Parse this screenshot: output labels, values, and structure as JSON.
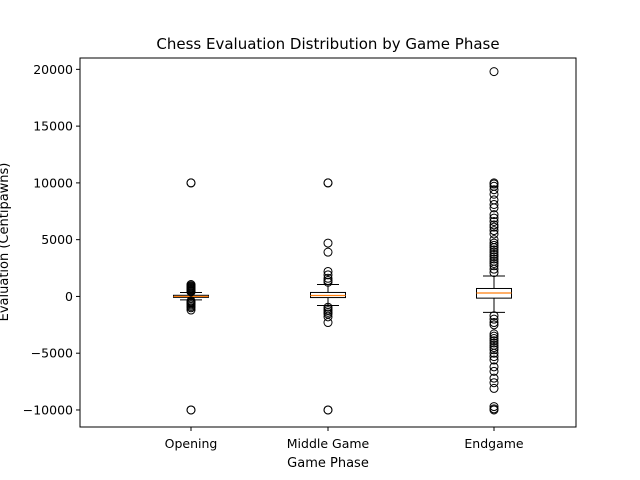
{
  "chart_data": {
    "type": "box",
    "title": "Chess Evaluation Distribution by Game Phase",
    "xlabel": "Game Phase",
    "ylabel": "Evaluation (Centipawns)",
    "ylim": [
      -11500,
      21000
    ],
    "yticks": [
      -10000,
      -5000,
      0,
      5000,
      10000,
      15000,
      20000
    ],
    "yticks_labels": [
      "−10000",
      "−5000",
      "0",
      "5000",
      "10000",
      "15000",
      "20000"
    ],
    "grid": false,
    "categories": [
      "Opening",
      "Middle Game",
      "Endgame"
    ],
    "colors": {
      "box": "#000000",
      "median": "#ff7f0e",
      "flier": "#000000"
    },
    "boxes": [
      {
        "label": "Opening",
        "whisker_low": -300,
        "q1": -80,
        "median": 0,
        "q3": 100,
        "whisker_high": 350,
        "fliers": [
          10000,
          10000,
          1050,
          950,
          880,
          800,
          720,
          650,
          580,
          500,
          450,
          400,
          -400,
          -480,
          -560,
          -650,
          -760,
          -880,
          -1000,
          -1200,
          -10000,
          -10000
        ]
      },
      {
        "label": "Middle Game",
        "whisker_low": -800,
        "q1": -100,
        "median": 80,
        "q3": 350,
        "whisker_high": 1050,
        "fliers": [
          10000,
          10000,
          4700,
          3900,
          2200,
          1900,
          1600,
          1400,
          1250,
          -950,
          -1100,
          -1250,
          -1400,
          -1550,
          -1800,
          -2300,
          -10000,
          -10000
        ]
      },
      {
        "label": "Endgame",
        "whisker_low": -1400,
        "q1": -150,
        "median": 300,
        "q3": 700,
        "whisker_high": 1800,
        "fliers": [
          19800,
          10000,
          9900,
          9700,
          9400,
          9000,
          8500,
          8100,
          7800,
          7200,
          6900,
          6600,
          6300,
          6100,
          5800,
          5500,
          5000,
          4700,
          4500,
          4300,
          4100,
          3900,
          3700,
          3500,
          3300,
          3100,
          2900,
          2700,
          2400,
          2100,
          -1700,
          -2000,
          -2300,
          -2500,
          -3300,
          -3500,
          -3700,
          -3900,
          -4100,
          -4300,
          -4500,
          -4700,
          -5000,
          -5300,
          -5600,
          -6200,
          -6600,
          -7200,
          -7600,
          -8100,
          -9700,
          -9900,
          -10000
        ]
      }
    ]
  }
}
